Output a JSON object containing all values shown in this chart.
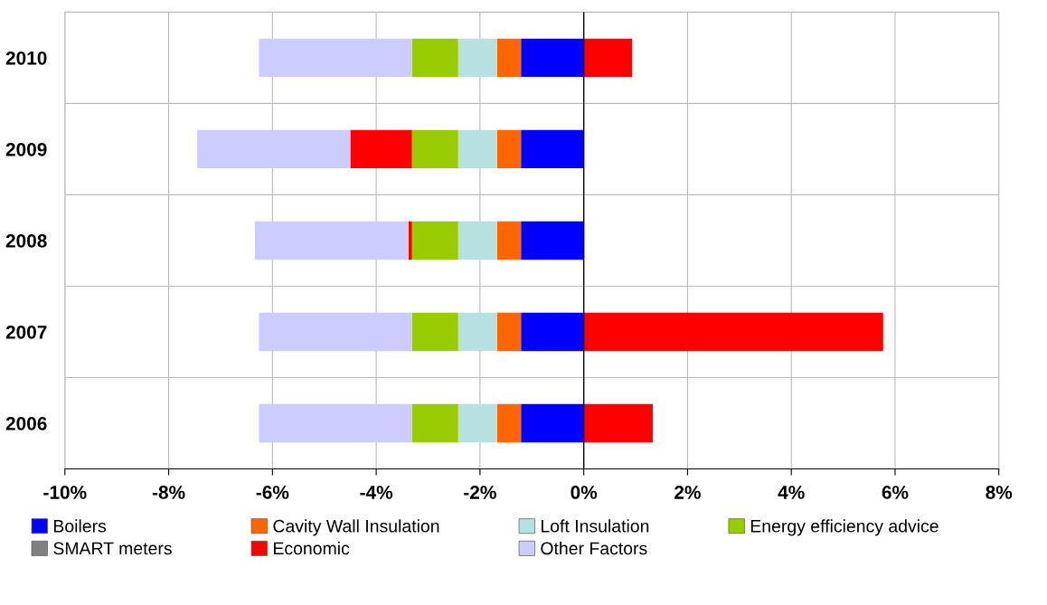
{
  "chart_data": {
    "type": "bar",
    "orientation": "horizontal",
    "stacked": true,
    "categories": [
      "2010",
      "2009",
      "2008",
      "2007",
      "2006"
    ],
    "series": [
      {
        "name": "Boilers",
        "color": "#0000ff",
        "values": [
          -1.21,
          -1.21,
          -1.21,
          -1.21,
          -1.21
        ]
      },
      {
        "name": "Cavity Wall Insulation",
        "color": "#ff6600",
        "values": [
          -0.46,
          -0.46,
          -0.46,
          -0.46,
          -0.46
        ]
      },
      {
        "name": "Loft Insulation",
        "color": "#b7e0e0",
        "values": [
          -0.75,
          -0.75,
          -0.75,
          -0.75,
          -0.75
        ]
      },
      {
        "name": "Energy efficiency advice",
        "color": "#99cc00",
        "values": [
          -0.89,
          -0.89,
          -0.89,
          -0.89,
          -0.89
        ]
      },
      {
        "name": "SMART meters",
        "color": "#808080",
        "values": [
          0,
          0,
          0,
          0,
          0
        ]
      },
      {
        "name": "Economic",
        "color": "#ff0000",
        "values": [
          0.93,
          -1.19,
          -0.07,
          5.77,
          1.33
        ]
      },
      {
        "name": "Other Factors",
        "color": "#ccccff",
        "values": [
          -2.95,
          -2.95,
          -2.96,
          -2.95,
          -2.95
        ]
      }
    ],
    "xlim": [
      -10,
      8
    ],
    "xticks": [
      {
        "value": -10,
        "label": "-10%"
      },
      {
        "value": -8,
        "label": "-8%"
      },
      {
        "value": -6,
        "label": "-6%"
      },
      {
        "value": -4,
        "label": "-4%"
      },
      {
        "value": -2,
        "label": "-2%"
      },
      {
        "value": 0,
        "label": "0%"
      },
      {
        "value": 2,
        "label": "2%"
      },
      {
        "value": 4,
        "label": "4%"
      },
      {
        "value": 6,
        "label": "6%"
      },
      {
        "value": 8,
        "label": "8%"
      }
    ],
    "grid": true,
    "legend": "bottom"
  }
}
